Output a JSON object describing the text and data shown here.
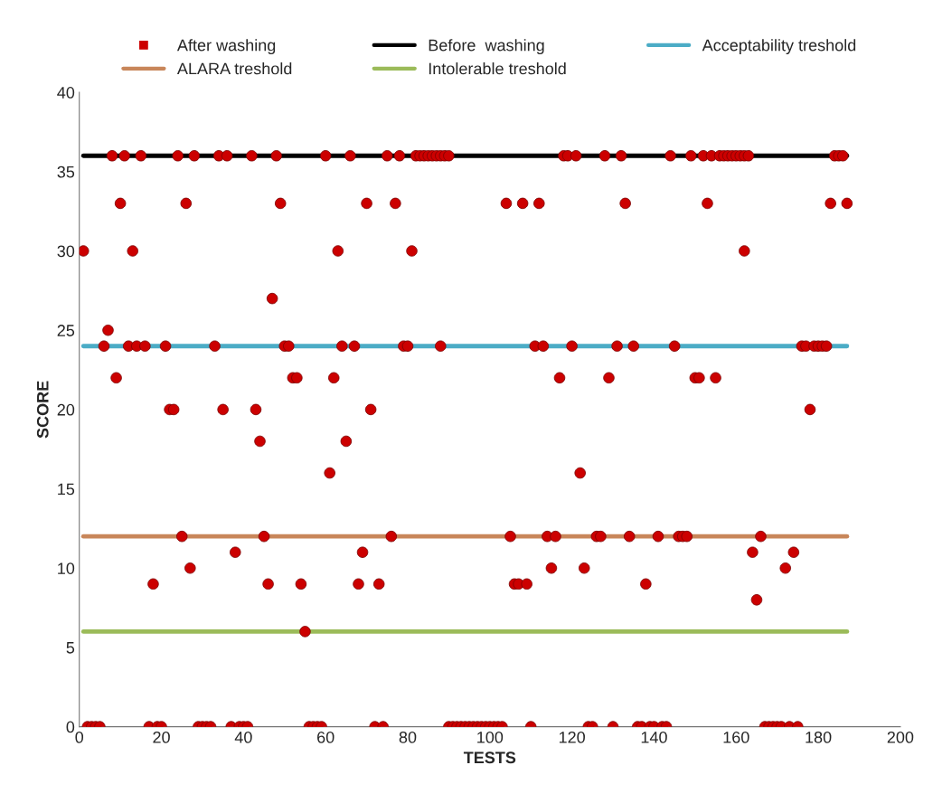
{
  "chart_data": {
    "type": "scatter",
    "xlabel": "TESTS",
    "ylabel": "SCORE",
    "xlim": [
      0,
      200
    ],
    "xticks": [
      0,
      20,
      40,
      60,
      80,
      100,
      120,
      140,
      160,
      180,
      200
    ],
    "ylim": [
      0,
      40
    ],
    "yticks": [
      0,
      5,
      10,
      15,
      20,
      25,
      30,
      35,
      40
    ],
    "legend": "top",
    "series": [
      {
        "name": "After washing",
        "marker": "circle",
        "color": "#cc0000",
        "x": [
          8,
          11,
          15,
          24,
          28,
          34,
          36,
          42,
          48,
          60,
          66,
          75,
          78,
          82,
          83,
          84,
          85,
          86,
          87,
          88,
          89,
          90,
          118,
          119,
          121,
          128,
          132,
          144,
          149,
          152,
          154,
          156,
          157,
          158,
          159,
          160,
          161,
          162,
          163,
          184,
          185,
          186,
          10,
          26,
          49,
          70,
          77,
          104,
          108,
          112,
          133,
          153,
          183,
          187,
          1,
          13,
          63,
          81,
          162,
          47,
          7,
          6,
          12,
          14,
          16,
          21,
          33,
          50,
          51,
          64,
          67,
          79,
          80,
          88,
          111,
          113,
          120,
          131,
          135,
          145,
          176,
          177,
          179,
          180,
          181,
          182,
          9,
          52,
          53,
          62,
          117,
          129,
          150,
          151,
          155,
          22,
          23,
          35,
          43,
          71,
          178,
          44,
          65,
          61,
          122,
          25,
          45,
          76,
          105,
          114,
          116,
          126,
          127,
          134,
          141,
          146,
          147,
          148,
          166,
          38,
          69,
          164,
          174,
          27,
          115,
          123,
          172,
          18,
          46,
          54,
          68,
          73,
          106,
          107,
          109,
          138,
          165,
          55,
          2,
          3,
          4,
          5,
          17,
          19,
          20,
          29,
          30,
          31,
          32,
          37,
          39,
          40,
          41,
          56,
          57,
          58,
          59,
          72,
          74,
          90,
          91,
          92,
          93,
          94,
          95,
          96,
          97,
          98,
          99,
          100,
          101,
          102,
          103,
          110,
          124,
          125,
          130,
          136,
          137,
          139,
          140,
          142,
          143,
          167,
          168,
          169,
          170,
          171,
          173,
          175
        ],
        "values": [
          36,
          36,
          36,
          36,
          36,
          36,
          36,
          36,
          36,
          36,
          36,
          36,
          36,
          36,
          36,
          36,
          36,
          36,
          36,
          36,
          36,
          36,
          36,
          36,
          36,
          36,
          36,
          36,
          36,
          36,
          36,
          36,
          36,
          36,
          36,
          36,
          36,
          36,
          36,
          36,
          36,
          36,
          33,
          33,
          33,
          33,
          33,
          33,
          33,
          33,
          33,
          33,
          33,
          33,
          30,
          30,
          30,
          30,
          30,
          27,
          25,
          24,
          24,
          24,
          24,
          24,
          24,
          24,
          24,
          24,
          24,
          24,
          24,
          24,
          24,
          24,
          24,
          24,
          24,
          24,
          24,
          24,
          24,
          24,
          24,
          24,
          22,
          22,
          22,
          22,
          22,
          22,
          22,
          22,
          22,
          20,
          20,
          20,
          20,
          20,
          20,
          18,
          18,
          16,
          16,
          12,
          12,
          12,
          12,
          12,
          12,
          12,
          12,
          12,
          12,
          12,
          12,
          12,
          12,
          11,
          11,
          11,
          11,
          10,
          10,
          10,
          10,
          9,
          9,
          9,
          9,
          9,
          9,
          9,
          9,
          9,
          8,
          6,
          0,
          0,
          0,
          0,
          0,
          0,
          0,
          0,
          0,
          0,
          0,
          0,
          0,
          0,
          0,
          0,
          0,
          0,
          0,
          0,
          0,
          0,
          0,
          0,
          0,
          0,
          0,
          0,
          0,
          0,
          0,
          0,
          0,
          0,
          0,
          0,
          0,
          0,
          0,
          0,
          0,
          0,
          0,
          0,
          0,
          0,
          0,
          0,
          0,
          0,
          0,
          0
        ]
      },
      {
        "name": "Before  washing",
        "type": "line",
        "marker": "none",
        "line_style": "solid",
        "color": "#000000",
        "x": [
          1,
          187
        ],
        "values": [
          36,
          36
        ]
      },
      {
        "name": "Acceptability treshold",
        "type": "line",
        "marker": "none",
        "line_style": "solid",
        "color": "#4bacc6",
        "x": [
          1,
          187
        ],
        "values": [
          24,
          24
        ]
      },
      {
        "name": "ALARA treshold",
        "type": "line",
        "marker": "none",
        "line_style": "solid",
        "color": "#c8865a",
        "x": [
          1,
          187
        ],
        "values": [
          12,
          12
        ]
      },
      {
        "name": "Intolerable treshold",
        "type": "line",
        "marker": "none",
        "line_style": "solid",
        "color": "#9bbb59",
        "x": [
          1,
          187
        ],
        "values": [
          6,
          6
        ]
      }
    ]
  }
}
